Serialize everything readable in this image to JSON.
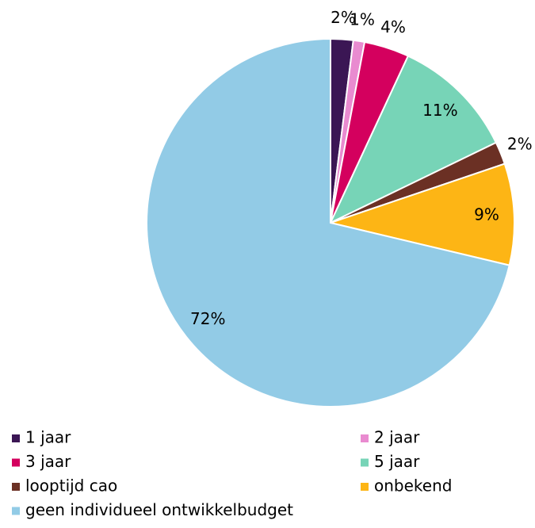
{
  "chart_data": {
    "type": "pie",
    "categories": [
      "1 jaar",
      "2 jaar",
      "3 jaar",
      "5 jaar",
      "looptijd cao",
      "onbekend",
      "geen individueel ontwikkelbudget"
    ],
    "values": [
      2,
      1,
      4,
      11,
      2,
      9,
      72
    ],
    "value_labels": [
      "2%",
      "1%",
      "4%",
      "11%",
      "2%",
      "9%",
      "72%"
    ],
    "colors": [
      "#3b1654",
      "#e98bd0",
      "#d4005e",
      "#77d4b7",
      "#6b3024",
      "#fdb515",
      "#92cbe6"
    ],
    "legend": "bottom"
  }
}
